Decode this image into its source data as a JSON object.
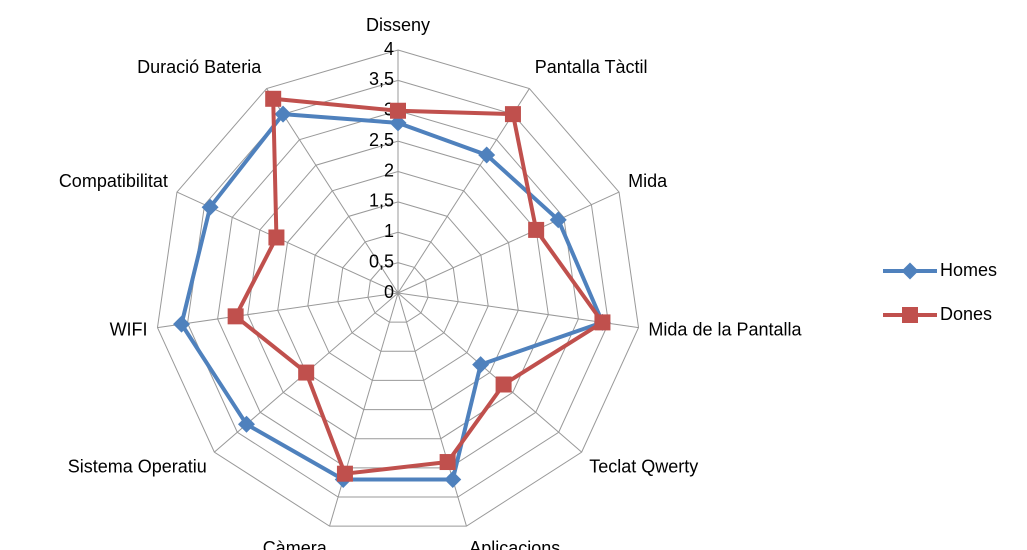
{
  "chart_data": {
    "type": "radar",
    "categories": [
      "Disseny",
      "Pantalla Tàctil",
      "Mida",
      "Mida de la Pantalla",
      "Teclat Qwerty",
      "Aplicacions",
      "Càmera",
      "Sistema Operatiu",
      "WIFI",
      "Compatibilitat",
      "Duració Bateria"
    ],
    "series": [
      {
        "name": "Homes",
        "color": "#4f81bd",
        "values": [
          2.8,
          2.7,
          2.9,
          3.4,
          1.8,
          3.2,
          3.2,
          3.3,
          3.6,
          3.4,
          3.5
        ]
      },
      {
        "name": "Dones",
        "color": "#c0504d",
        "values": [
          3.0,
          3.5,
          2.5,
          3.4,
          2.3,
          2.9,
          3.1,
          2.0,
          2.7,
          2.2,
          3.8
        ]
      }
    ],
    "ylim": [
      0,
      4
    ],
    "yticks": [
      0,
      {
        "value": 0.5,
        "label": "0,5"
      },
      1,
      {
        "value": 1.5,
        "label": "1,5"
      },
      2,
      {
        "value": 2.5,
        "label": "2,5"
      },
      3,
      {
        "value": 3.5,
        "label": "3,5"
      },
      4
    ],
    "grid": true,
    "legend": "right"
  }
}
